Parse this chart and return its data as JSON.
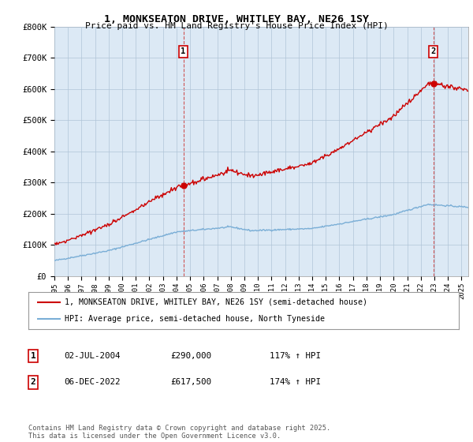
{
  "title": "1, MONKSEATON DRIVE, WHITLEY BAY, NE26 1SY",
  "subtitle": "Price paid vs. HM Land Registry's House Price Index (HPI)",
  "xlim": [
    1995.0,
    2025.5
  ],
  "ylim": [
    0,
    800000
  ],
  "yticks": [
    0,
    100000,
    200000,
    300000,
    400000,
    500000,
    600000,
    700000,
    800000
  ],
  "ytick_labels": [
    "£0",
    "£100K",
    "£200K",
    "£300K",
    "£400K",
    "£500K",
    "£600K",
    "£700K",
    "£800K"
  ],
  "sale1_x": 2004.5,
  "sale1_y": 290000,
  "sale1_label": "1",
  "sale1_date": "02-JUL-2004",
  "sale1_price": "£290,000",
  "sale1_hpi": "117% ↑ HPI",
  "sale2_x": 2022.92,
  "sale2_y": 617500,
  "sale2_label": "2",
  "sale2_date": "06-DEC-2022",
  "sale2_price": "£617,500",
  "sale2_hpi": "174% ↑ HPI",
  "legend_line1": "1, MONKSEATON DRIVE, WHITLEY BAY, NE26 1SY (semi-detached house)",
  "legend_line2": "HPI: Average price, semi-detached house, North Tyneside",
  "footer": "Contains HM Land Registry data © Crown copyright and database right 2025.\nThis data is licensed under the Open Government Licence v3.0.",
  "line_color_red": "#cc0000",
  "line_color_blue": "#7aaed6",
  "bg_color": "#ffffff",
  "plot_bg_color": "#dce9f5",
  "grid_color": "#b0c4d8"
}
